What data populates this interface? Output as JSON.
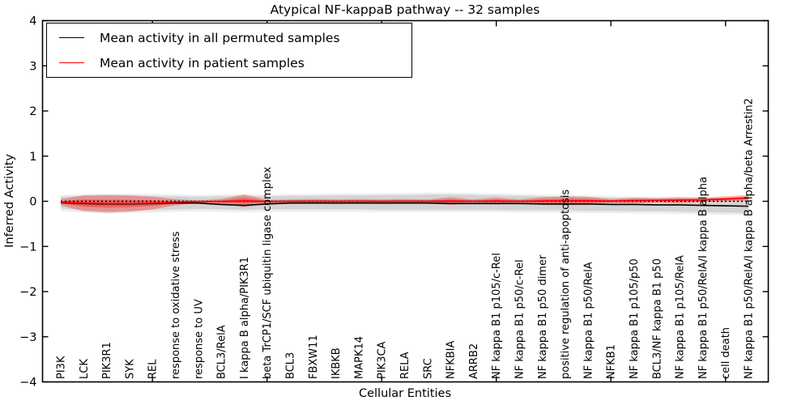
{
  "chart_data": {
    "type": "line",
    "title": "Atypical NF-kappaB pathway -- 32 samples",
    "xlabel": "Cellular Entities",
    "ylabel": "Inferred Activity",
    "ylim": [
      -4,
      4
    ],
    "yticks": [
      4,
      3,
      2,
      1,
      0,
      -1,
      -2,
      -3,
      -4
    ],
    "grid": false,
    "legend_position": "upper left",
    "major_x_tick_indices": [
      4,
      9,
      14,
      19,
      24,
      29
    ],
    "zero_line": {
      "y": 0,
      "style": "dotted",
      "color": "#000000"
    },
    "categories": [
      "PI3K",
      "LCK",
      "PIK3R1",
      "SYK",
      "REL",
      "response to oxidative stress",
      "response to UV",
      "BCL3/RelA",
      "I kappa B alpha/PIK3R1",
      "beta TrCP1/SCF ubiquitin ligase complex",
      "BCL3",
      "FBXW11",
      "IKBKB",
      "MAPK14",
      "PIK3CA",
      "RELA",
      "SRC",
      "NFKBIA",
      "ARRB2",
      "NF kappa B1 p105/c-Rel",
      "NF kappa B1 p50/c-Rel",
      "NF kappa B1 p50 dimer",
      "positive regulation of anti-apoptosis",
      "NF kappa B1 p50/RelA",
      "NFKB1",
      "NF kappa B1 p105/p50",
      "BCL3/NF kappa B1 p50",
      "NF kappa B1 p105/RelA",
      "NF kappa B1 p50/RelA/I kappa B alpha",
      "cell death",
      "NF kappa B1 p50/RelA/I kappa B alpha/beta Arrestin2"
    ],
    "series": [
      {
        "name": "Mean activity in all permuted samples",
        "color": "#000000",
        "values": [
          -0.03,
          -0.05,
          -0.06,
          -0.06,
          -0.05,
          -0.04,
          -0.04,
          -0.07,
          -0.09,
          -0.06,
          -0.04,
          -0.04,
          -0.04,
          -0.04,
          -0.04,
          -0.04,
          -0.04,
          -0.05,
          -0.05,
          -0.05,
          -0.05,
          -0.06,
          -0.06,
          -0.06,
          -0.07,
          -0.07,
          -0.08,
          -0.08,
          -0.09,
          -0.1,
          -0.11
        ]
      },
      {
        "name": "Mean activity in patient samples",
        "color": "#ff0000",
        "values": [
          -0.02,
          -0.04,
          -0.05,
          -0.05,
          -0.04,
          -0.02,
          -0.005,
          -0.005,
          0.01,
          -0.005,
          0,
          0,
          0,
          0,
          0,
          0,
          0,
          0.005,
          0,
          0.005,
          0,
          0.005,
          0.01,
          0.01,
          0.005,
          0.015,
          0.02,
          0.025,
          0.03,
          0.05,
          0.075
        ]
      }
    ],
    "bands": [
      {
        "name": "permuted-range",
        "color": "rgba(0,0,0,0.07)",
        "upper": [
          0.14,
          0.16,
          0.17,
          0.17,
          0.16,
          0.15,
          0.14,
          0.15,
          0.16,
          0.15,
          0.16,
          0.16,
          0.17,
          0.17,
          0.18,
          0.18,
          0.19,
          0.19,
          0.18,
          0.17,
          0.16,
          0.15,
          0.14,
          0.13,
          0.12,
          0.11,
          0.1,
          0.09,
          0.09,
          0.08,
          0.08
        ],
        "lower": [
          -0.21,
          -0.25,
          -0.27,
          -0.26,
          -0.25,
          -0.23,
          -0.22,
          -0.23,
          -0.24,
          -0.23,
          -0.23,
          -0.23,
          -0.23,
          -0.23,
          -0.24,
          -0.24,
          -0.24,
          -0.24,
          -0.24,
          -0.24,
          -0.25,
          -0.25,
          -0.25,
          -0.26,
          -0.26,
          -0.27,
          -0.27,
          -0.28,
          -0.29,
          -0.3,
          -0.31
        ]
      },
      {
        "name": "permuted-std",
        "color": "rgba(0,0,0,0.10)",
        "upper": [
          0.1,
          0.12,
          0.13,
          0.13,
          0.12,
          0.11,
          0.1,
          0.11,
          0.12,
          0.11,
          0.12,
          0.12,
          0.13,
          0.13,
          0.14,
          0.14,
          0.15,
          0.15,
          0.14,
          0.13,
          0.12,
          0.11,
          0.1,
          0.09,
          0.08,
          0.07,
          0.06,
          0.05,
          0.05,
          0.04,
          0.04
        ],
        "lower": [
          -0.16,
          -0.2,
          -0.22,
          -0.21,
          -0.2,
          -0.18,
          -0.17,
          -0.18,
          -0.19,
          -0.18,
          -0.18,
          -0.18,
          -0.18,
          -0.18,
          -0.19,
          -0.19,
          -0.19,
          -0.19,
          -0.19,
          -0.19,
          -0.2,
          -0.2,
          -0.2,
          -0.21,
          -0.21,
          -0.22,
          -0.22,
          -0.23,
          -0.24,
          -0.25,
          -0.26
        ]
      },
      {
        "name": "patient-std",
        "color": "rgba(255,0,0,0.30)",
        "upper": [
          0.05,
          0.13,
          0.14,
          0.13,
          0.1,
          0.05,
          0.02,
          0.05,
          0.15,
          0.03,
          0.04,
          0.05,
          0.04,
          0.05,
          0.04,
          0.05,
          0.04,
          0.09,
          0.04,
          0.08,
          0.04,
          0.09,
          0.11,
          0.1,
          0.05,
          0.08,
          0.07,
          0.09,
          0.08,
          0.11,
          0.14
        ],
        "lower": [
          -0.09,
          -0.22,
          -0.25,
          -0.23,
          -0.18,
          -0.09,
          -0.03,
          -0.06,
          -0.13,
          -0.04,
          -0.04,
          -0.05,
          -0.04,
          -0.05,
          -0.04,
          -0.05,
          -0.04,
          -0.08,
          -0.04,
          -0.07,
          -0.04,
          -0.08,
          -0.09,
          -0.08,
          -0.04,
          -0.05,
          -0.03,
          -0.04,
          -0.02,
          -0.01,
          0.01
        ]
      },
      {
        "name": "patient-sem",
        "color": "rgba(255,0,0,0.35)",
        "upper": [
          0.012,
          0.037,
          0.036,
          0.031,
          0.023,
          0.012,
          0.006,
          0.02,
          0.073,
          0.011,
          0.018,
          0.023,
          0.018,
          0.023,
          0.018,
          0.023,
          0.018,
          0.043,
          0.018,
          0.039,
          0.018,
          0.043,
          0.055,
          0.05,
          0.025,
          0.044,
          0.043,
          0.054,
          0.053,
          0.077,
          0.104
        ],
        "lower": [
          -0.052,
          -0.121,
          -0.14,
          -0.131,
          -0.103,
          -0.052,
          -0.016,
          -0.03,
          -0.053,
          -0.021,
          -0.018,
          -0.023,
          -0.018,
          -0.023,
          -0.018,
          -0.023,
          -0.018,
          -0.033,
          -0.018,
          -0.029,
          -0.018,
          -0.033,
          -0.035,
          -0.031,
          -0.015,
          -0.014,
          -0.003,
          -0.004,
          0.008,
          0.023,
          0.046
        ]
      }
    ]
  }
}
